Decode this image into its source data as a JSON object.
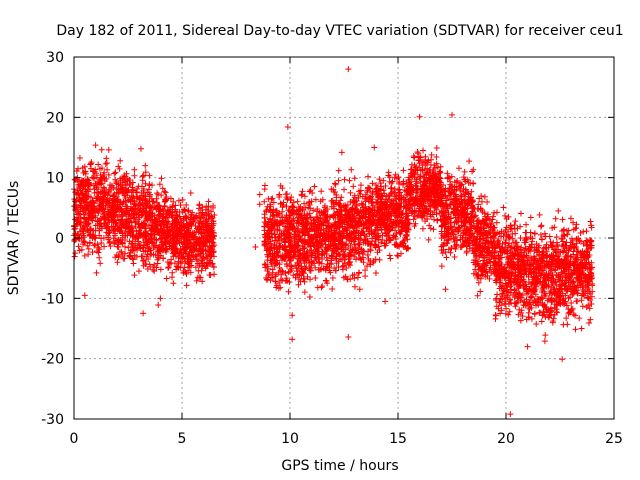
{
  "chart_data": {
    "type": "scatter",
    "title": "Day 182 of 2011, Sidereal Day-to-day VTEC variation (SDTVAR) for receiver ceu1",
    "xlabel": "GPS time / hours",
    "ylabel": "SDTVAR / TECUs",
    "xlim": [
      0,
      25
    ],
    "ylim": [
      -30,
      30
    ],
    "xticks": [
      0,
      5,
      10,
      15,
      20,
      25
    ],
    "yticks": [
      -30,
      -20,
      -10,
      0,
      10,
      20,
      30
    ],
    "grid": true,
    "marker": "+",
    "color": "#ff0000",
    "series": [
      {
        "name": "SDTVAR",
        "clusters": [
          {
            "x_start": 0.0,
            "x_end": 0.5,
            "y_center": 4,
            "y_spread": 8
          },
          {
            "x_start": 0.5,
            "x_end": 1.5,
            "y_center": 5,
            "y_spread": 8
          },
          {
            "x_start": 1.5,
            "x_end": 2.5,
            "y_center": 4,
            "y_spread": 8
          },
          {
            "x_start": 2.5,
            "x_end": 3.5,
            "y_center": 3,
            "y_spread": 8
          },
          {
            "x_start": 3.5,
            "x_end": 4.5,
            "y_center": 1.5,
            "y_spread": 7
          },
          {
            "x_start": 4.5,
            "x_end": 6.5,
            "y_center": 0,
            "y_spread": 6
          },
          {
            "x_start": 8.8,
            "x_end": 10.0,
            "y_center": 0,
            "y_spread": 9
          },
          {
            "x_start": 10.0,
            "x_end": 12.0,
            "y_center": 0,
            "y_spread": 8
          },
          {
            "x_start": 12.0,
            "x_end": 14.0,
            "y_center": 1.5,
            "y_spread": 8
          },
          {
            "x_start": 14.0,
            "x_end": 15.5,
            "y_center": 4,
            "y_spread": 7
          },
          {
            "x_start": 15.5,
            "x_end": 17.0,
            "y_center": 8,
            "y_spread": 6
          },
          {
            "x_start": 17.0,
            "x_end": 18.5,
            "y_center": 4,
            "y_spread": 7
          },
          {
            "x_start": 18.5,
            "x_end": 19.5,
            "y_center": -1,
            "y_spread": 7
          },
          {
            "x_start": 19.5,
            "x_end": 20.5,
            "y_center": -5,
            "y_spread": 8
          },
          {
            "x_start": 20.5,
            "x_end": 22.5,
            "y_center": -6,
            "y_spread": 8
          },
          {
            "x_start": 22.5,
            "x_end": 24.0,
            "y_center": -5,
            "y_spread": 8
          }
        ],
        "outliers": [
          [
            12.7,
            28
          ],
          [
            17.5,
            20.4
          ],
          [
            16.0,
            20.1
          ],
          [
            9.9,
            18.4
          ],
          [
            12.4,
            14.2
          ],
          [
            13.9,
            15.0
          ],
          [
            1.0,
            15.4
          ],
          [
            3.1,
            14.8
          ],
          [
            8.6,
            7.2
          ],
          [
            8.6,
            5.6
          ],
          [
            8.4,
            -1.5
          ],
          [
            10.1,
            -12.8
          ],
          [
            10.1,
            -16.8
          ],
          [
            12.7,
            -16.4
          ],
          [
            3.2,
            -12.5
          ],
          [
            3.9,
            -11.1
          ],
          [
            4.0,
            -10.0
          ],
          [
            0.5,
            -9.5
          ],
          [
            17.2,
            -8.5
          ],
          [
            21.8,
            -17.1
          ],
          [
            22.6,
            -20.1
          ],
          [
            20.2,
            -29.2
          ],
          [
            21.0,
            -18.0
          ],
          [
            4.6,
            -7.5
          ],
          [
            5.8,
            -6.5
          ],
          [
            14.4,
            -10.5
          ],
          [
            19.8,
            -12.0
          ],
          [
            23.5,
            -15.0
          ]
        ]
      }
    ]
  }
}
